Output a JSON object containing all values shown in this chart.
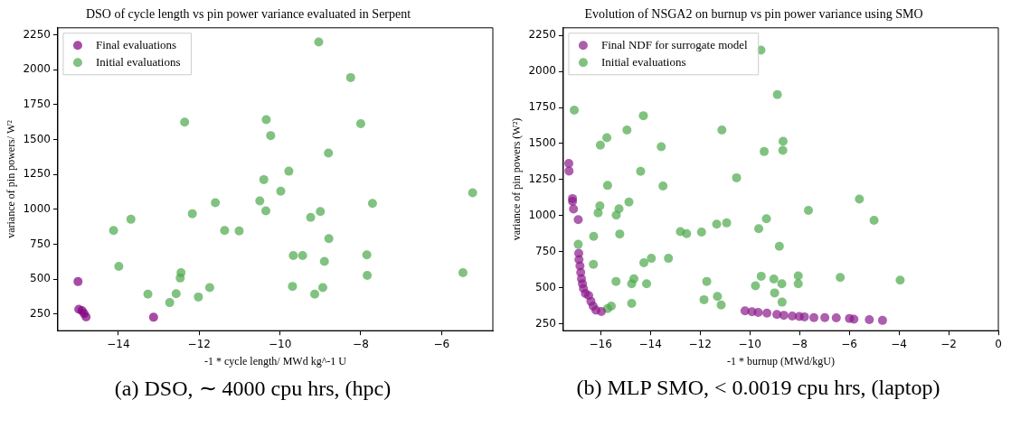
{
  "chart_data": [
    {
      "type": "scatter",
      "title": "DSO of cycle length vs pin power variance evaluated in Serpent",
      "xlabel": "-1 * cycle length/ MWd kg^-1 U",
      "ylabel": "variance of pin powers/ W²",
      "xlim": [
        -15.5,
        -4.73
      ],
      "ylim": [
        132,
        2299
      ],
      "xticks": [
        {
          "value": -14,
          "label": "−14"
        },
        {
          "value": -12,
          "label": "−12"
        },
        {
          "value": -10,
          "label": "−10"
        },
        {
          "value": -8,
          "label": "−8"
        },
        {
          "value": -6,
          "label": "−6"
        }
      ],
      "yticks": [
        250,
        500,
        750,
        1000,
        1250,
        1500,
        1750,
        2000,
        2250
      ],
      "legend": "top left",
      "marker": "circle",
      "grid": false,
      "annotations": [
        "(a) DSO, ∼ 4000 cpu hrs, (hpc)"
      ],
      "series": [
        {
          "name": "Final evaluations",
          "color": "#800080",
          "x": [
            -15.0,
            -14.98,
            -14.9,
            -14.85,
            -14.8,
            -13.13
          ],
          "values": [
            483,
            285,
            275,
            255,
            230,
            228
          ]
        },
        {
          "name": "Initial evaluations",
          "color": "#4ca84c",
          "x": [
            -9.04,
            -8.25,
            -12.36,
            -10.34,
            -8.0,
            -10.23,
            -8.8,
            -9.78,
            -10.4,
            -9.98,
            -5.23,
            -10.5,
            -11.6,
            -7.71,
            -10.35,
            -9.0,
            -12.17,
            -9.24,
            -13.69,
            -14.12,
            -11.37,
            -11.01,
            -8.79,
            -9.67,
            -9.44,
            -7.85,
            -8.9,
            -13.99,
            -12.45,
            -12.47,
            -7.84,
            -5.47,
            -9.69,
            -8.94,
            -11.74,
            -13.27,
            -12.57,
            -9.14,
            -12.02,
            -12.73
          ],
          "values": [
            2198,
            1943,
            1624,
            1642,
            1613,
            1528,
            1403,
            1273,
            1213,
            1130,
            1119,
            1061,
            1048,
            1043,
            989,
            985,
            969,
            943,
            929,
            849,
            849,
            846,
            791,
            670,
            670,
            674,
            628,
            592,
            547,
            509,
            527,
            547,
            449,
            440,
            440,
            393,
            397,
            393,
            373,
            333
          ]
        }
      ]
    },
    {
      "type": "scatter",
      "title": "Evolution of NSGA2 on burnup vs pin power variance using SMO",
      "xlabel": "-1 * burnup (MWd/kgU)",
      "ylabel": "variance of pin powers (W²)",
      "xlim": [
        -17.5,
        0
      ],
      "ylim": [
        201,
        2303
      ],
      "xticks": [
        {
          "value": -16,
          "label": "−16"
        },
        {
          "value": -14,
          "label": "−14"
        },
        {
          "value": -12,
          "label": "−12"
        },
        {
          "value": -10,
          "label": "−10"
        },
        {
          "value": -8,
          "label": "−8"
        },
        {
          "value": -6,
          "label": "−6"
        },
        {
          "value": -4,
          "label": "−4"
        },
        {
          "value": -2,
          "label": "−2"
        },
        0
      ],
      "yticks": [
        250,
        500,
        750,
        1000,
        1250,
        1500,
        1750,
        2000,
        2250
      ],
      "legend": "top left",
      "marker": "circle",
      "grid": false,
      "annotations": [
        "(b) MLP SMO, < 0.0019 cpu hrs, (laptop)"
      ],
      "series": [
        {
          "name": "Final NDF for surrogate model",
          "color": "#8a1a8a",
          "x": [
            -17.28,
            -17.27,
            -17.13,
            -17.13,
            -17.09,
            -16.9,
            -16.88,
            -16.87,
            -16.83,
            -16.8,
            -16.77,
            -16.73,
            -16.69,
            -16.61,
            -16.48,
            -16.39,
            -16.3,
            -16.19,
            -15.97,
            -10.19,
            -9.91,
            -9.66,
            -9.31,
            -8.91,
            -8.63,
            -8.29,
            -8.01,
            -7.8,
            -7.42,
            -6.98,
            -6.52,
            -5.99,
            -5.81,
            -5.19,
            -4.66
          ],
          "values": [
            1362,
            1309,
            1118,
            1098,
            1045,
            972,
            738,
            694,
            650,
            605,
            561,
            527,
            494,
            459,
            445,
            405,
            372,
            343,
            334,
            339,
            332,
            328,
            323,
            314,
            308,
            303,
            299,
            297,
            292,
            292,
            290,
            286,
            281,
            277,
            272
          ]
        },
        {
          "name": "Initial evaluations",
          "color": "#4ca84c",
          "x": [
            -9.55,
            -8.89,
            -17.06,
            -14.28,
            -14.94,
            -11.12,
            -15.75,
            -16.01,
            -13.56,
            -8.66,
            -9.42,
            -8.67,
            -14.39,
            -10.53,
            -15.72,
            -13.49,
            -5.59,
            -14.86,
            -16.03,
            -15.26,
            -16.1,
            -15.37,
            -7.64,
            -5.0,
            -9.33,
            -9.64,
            -11.33,
            -10.93,
            -12.79,
            -12.54,
            -11.94,
            -15.23,
            -16.28,
            -8.81,
            -16.9,
            -16.29,
            -14.26,
            -13.96,
            -13.27,
            -15.38,
            -14.66,
            -14.75,
            -14.15,
            -11.73,
            -9.54,
            -9.03,
            -8.71,
            -8.05,
            -8.05,
            -9.77,
            -6.36,
            -3.95,
            -9.0,
            -11.3,
            -11.84,
            -11.15,
            -8.7,
            -14.75,
            -15.57,
            -15.72
          ],
          "values": [
            2148,
            1840,
            1731,
            1693,
            1593,
            1593,
            1540,
            1489,
            1478,
            1515,
            1444,
            1453,
            1307,
            1262,
            1209,
            1205,
            1114,
            1094,
            1067,
            1047,
            1018,
            1003,
            1036,
            967,
            978,
            909,
            940,
            949,
            889,
            874,
            885,
            872,
            856,
            787,
            800,
            661,
            672,
            703,
            703,
            543,
            561,
            527,
            527,
            543,
            579,
            559,
            527,
            581,
            527,
            512,
            570,
            552,
            463,
            439,
            416,
            379,
            399,
            390,
            372,
            354
          ]
        }
      ]
    }
  ]
}
